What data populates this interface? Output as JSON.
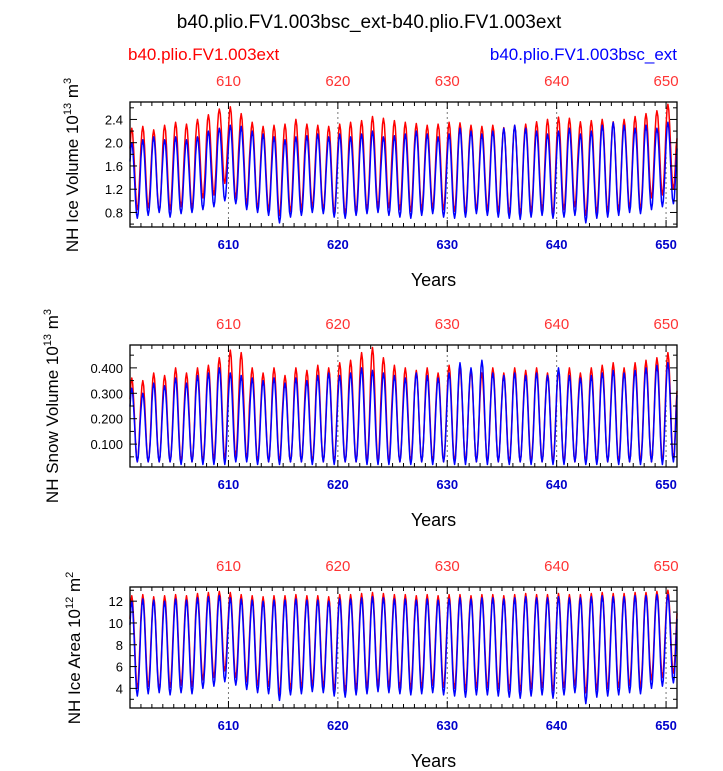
{
  "figure": {
    "title": "b40.plio.FV1.003bsc_ext-b40.plio.FV1.003ext",
    "legend_left": "b40.plio.FV1.003ext",
    "legend_right": "b40.plio.FV1.003bsc_ext",
    "colors": {
      "red_series": "#ff0000",
      "blue_series": "#0000ff",
      "top_ticks": "#ff3333",
      "bottom_ticks": "#0000cc"
    }
  },
  "chart_data": [
    {
      "type": "line",
      "xlabel": "Years",
      "ylabel_base": "NH Ice Volume 10",
      "ylabel_exp": "13",
      "ylabel_unit": " m",
      "ylabel_unit_exp": "3",
      "xlim": [
        601,
        651
      ],
      "ylim": [
        0.55,
        2.7
      ],
      "xticks": [
        610,
        620,
        630,
        640,
        650
      ],
      "yticks": [
        0.8,
        1.2,
        1.6,
        2.0,
        2.4
      ],
      "ytick_labels": [
        "0.8",
        "1.2",
        "1.6",
        "2.0",
        "2.4"
      ],
      "yminor": [
        0.6,
        1.0,
        1.4,
        1.8,
        2.2,
        2.6
      ],
      "grid": "dashed vertical at labeled years",
      "series": [
        {
          "name": "b40.plio.FV1.003ext",
          "color": "#ff0000",
          "years": [
            601,
            602,
            603,
            604,
            605,
            606,
            607,
            608,
            609,
            610,
            611,
            612,
            613,
            614,
            615,
            616,
            617,
            618,
            619,
            620,
            621,
            622,
            623,
            624,
            625,
            626,
            627,
            628,
            629,
            630,
            631,
            632,
            633,
            634,
            635,
            636,
            637,
            638,
            639,
            640,
            641,
            642,
            643,
            644,
            645,
            646,
            647,
            648,
            649,
            650,
            651
          ],
          "annual_max": [
            2.25,
            2.28,
            2.22,
            2.3,
            2.35,
            2.32,
            2.4,
            2.48,
            2.58,
            2.62,
            2.5,
            2.35,
            2.28,
            2.3,
            2.32,
            2.4,
            2.32,
            2.3,
            2.28,
            2.32,
            2.35,
            2.38,
            2.45,
            2.42,
            2.38,
            2.35,
            2.33,
            2.3,
            2.32,
            2.35,
            2.34,
            2.3,
            2.28,
            2.3,
            2.26,
            2.3,
            2.32,
            2.36,
            2.4,
            2.44,
            2.42,
            2.36,
            2.38,
            2.4,
            2.36,
            2.4,
            2.45,
            2.5,
            2.55,
            2.66,
            2.35
          ],
          "annual_min": [
            0.85,
            0.88,
            0.82,
            0.85,
            0.9,
            0.88,
            1.05,
            1.1,
            1.3,
            1.05,
            0.95,
            0.88,
            0.85,
            0.75,
            0.82,
            0.85,
            0.9,
            0.85,
            0.8,
            0.78,
            0.82,
            0.85,
            0.9,
            0.88,
            0.85,
            0.82,
            0.85,
            0.88,
            0.85,
            0.82,
            0.8,
            0.85,
            0.85,
            0.82,
            0.8,
            0.78,
            0.82,
            0.85,
            0.78,
            0.85,
            0.9,
            0.75,
            0.8,
            0.82,
            0.85,
            0.88,
            0.85,
            1.05,
            1.1,
            1.2,
            1.25
          ]
        },
        {
          "name": "b40.plio.FV1.003bsc_ext",
          "color": "#0000ff",
          "years": [
            601,
            602,
            603,
            604,
            605,
            606,
            607,
            608,
            609,
            610,
            611,
            612,
            613,
            614,
            615,
            616,
            617,
            618,
            619,
            620,
            621,
            622,
            623,
            624,
            625,
            626,
            627,
            628,
            629,
            630,
            631,
            632,
            633,
            634,
            635,
            636,
            637,
            638,
            639,
            640,
            641,
            642,
            643,
            644,
            645,
            646,
            647,
            648,
            649,
            650,
            651
          ],
          "annual_max": [
            2.0,
            2.05,
            2.1,
            2.05,
            2.1,
            2.05,
            2.1,
            2.2,
            2.25,
            2.3,
            2.28,
            2.2,
            2.15,
            2.1,
            2.05,
            2.1,
            2.12,
            2.15,
            2.1,
            2.15,
            2.1,
            2.15,
            2.2,
            2.1,
            2.12,
            2.15,
            2.2,
            2.15,
            2.1,
            2.15,
            2.25,
            2.2,
            2.15,
            2.2,
            2.25,
            2.3,
            2.25,
            2.2,
            2.15,
            2.2,
            2.25,
            2.15,
            2.2,
            2.3,
            2.35,
            2.3,
            2.25,
            2.3,
            2.25,
            2.35,
            2.2
          ],
          "annual_min": [
            0.7,
            0.75,
            0.8,
            0.72,
            0.78,
            0.8,
            0.85,
            0.9,
            1.0,
            0.95,
            0.85,
            0.8,
            0.75,
            0.62,
            0.72,
            0.75,
            0.8,
            0.78,
            0.72,
            0.7,
            0.75,
            0.78,
            0.8,
            0.75,
            0.72,
            0.7,
            0.75,
            0.78,
            0.72,
            0.7,
            0.72,
            0.78,
            0.75,
            0.72,
            0.7,
            0.68,
            0.72,
            0.75,
            0.7,
            0.72,
            0.75,
            0.62,
            0.7,
            0.72,
            0.75,
            0.8,
            0.78,
            0.85,
            0.9,
            0.95,
            1.0
          ]
        }
      ]
    },
    {
      "type": "line",
      "xlabel": "Years",
      "ylabel_base": "NH Snow Volume 10",
      "ylabel_exp": "13",
      "ylabel_unit": " m",
      "ylabel_unit_exp": "3",
      "xlim": [
        601,
        651
      ],
      "ylim": [
        0.01,
        0.49
      ],
      "xticks": [
        610,
        620,
        630,
        640,
        650
      ],
      "yticks": [
        0.1,
        0.2,
        0.3,
        0.4
      ],
      "ytick_labels": [
        "0.100",
        "0.200",
        "0.300",
        "0.400"
      ],
      "yminor": [
        0.05,
        0.15,
        0.25,
        0.35,
        0.45
      ],
      "grid": "dashed vertical at labeled years",
      "series": [
        {
          "name": "b40.plio.FV1.003ext",
          "color": "#ff0000",
          "years": [
            601,
            602,
            603,
            604,
            605,
            606,
            607,
            608,
            609,
            610,
            611,
            612,
            613,
            614,
            615,
            616,
            617,
            618,
            619,
            620,
            621,
            622,
            623,
            624,
            625,
            626,
            627,
            628,
            629,
            630,
            631,
            632,
            633,
            634,
            635,
            636,
            637,
            638,
            639,
            640,
            641,
            642,
            643,
            644,
            645,
            646,
            647,
            648,
            649,
            650,
            651
          ],
          "annual_max": [
            0.36,
            0.35,
            0.38,
            0.37,
            0.4,
            0.38,
            0.4,
            0.41,
            0.44,
            0.47,
            0.46,
            0.4,
            0.38,
            0.4,
            0.37,
            0.4,
            0.39,
            0.41,
            0.4,
            0.42,
            0.43,
            0.46,
            0.48,
            0.44,
            0.41,
            0.4,
            0.39,
            0.4,
            0.38,
            0.41,
            0.4,
            0.39,
            0.38,
            0.4,
            0.38,
            0.4,
            0.39,
            0.4,
            0.38,
            0.39,
            0.4,
            0.38,
            0.4,
            0.41,
            0.42,
            0.4,
            0.42,
            0.43,
            0.44,
            0.46,
            0.4
          ],
          "annual_min": [
            0.03,
            0.03,
            0.03,
            0.03,
            0.03,
            0.03,
            0.03,
            0.04,
            0.04,
            0.05,
            0.04,
            0.03,
            0.03,
            0.03,
            0.03,
            0.03,
            0.03,
            0.03,
            0.03,
            0.03,
            0.03,
            0.03,
            0.03,
            0.03,
            0.03,
            0.03,
            0.03,
            0.03,
            0.03,
            0.03,
            0.03,
            0.03,
            0.03,
            0.03,
            0.03,
            0.03,
            0.03,
            0.03,
            0.03,
            0.03,
            0.03,
            0.03,
            0.03,
            0.03,
            0.03,
            0.03,
            0.03,
            0.03,
            0.03,
            0.04,
            0.04
          ]
        },
        {
          "name": "b40.plio.FV1.003bsc_ext",
          "color": "#0000ff",
          "years": [
            601,
            602,
            603,
            604,
            605,
            606,
            607,
            608,
            609,
            610,
            611,
            612,
            613,
            614,
            615,
            616,
            617,
            618,
            619,
            620,
            621,
            622,
            623,
            624,
            625,
            626,
            627,
            628,
            629,
            630,
            631,
            632,
            633,
            634,
            635,
            636,
            637,
            638,
            639,
            640,
            641,
            642,
            643,
            644,
            645,
            646,
            647,
            648,
            649,
            650,
            651
          ],
          "annual_max": [
            0.32,
            0.3,
            0.34,
            0.33,
            0.36,
            0.34,
            0.37,
            0.38,
            0.4,
            0.38,
            0.37,
            0.36,
            0.35,
            0.36,
            0.34,
            0.36,
            0.35,
            0.37,
            0.38,
            0.37,
            0.38,
            0.4,
            0.39,
            0.38,
            0.37,
            0.36,
            0.38,
            0.37,
            0.36,
            0.38,
            0.42,
            0.4,
            0.43,
            0.38,
            0.37,
            0.38,
            0.37,
            0.38,
            0.37,
            0.4,
            0.37,
            0.36,
            0.37,
            0.38,
            0.39,
            0.38,
            0.39,
            0.4,
            0.41,
            0.42,
            0.38
          ],
          "annual_min": [
            0.03,
            0.03,
            0.03,
            0.03,
            0.02,
            0.03,
            0.02,
            0.02,
            0.02,
            0.03,
            0.03,
            0.02,
            0.03,
            0.02,
            0.03,
            0.03,
            0.02,
            0.03,
            0.02,
            0.03,
            0.03,
            0.02,
            0.02,
            0.02,
            0.03,
            0.02,
            0.03,
            0.02,
            0.03,
            0.02,
            0.02,
            0.03,
            0.02,
            0.03,
            0.02,
            0.03,
            0.02,
            0.03,
            0.02,
            0.02,
            0.03,
            0.02,
            0.02,
            0.03,
            0.02,
            0.03,
            0.02,
            0.03,
            0.02,
            0.03,
            0.03
          ]
        }
      ]
    },
    {
      "type": "line",
      "xlabel": "Years",
      "ylabel_base": "NH Ice Area 10",
      "ylabel_exp": "12",
      "ylabel_unit": " m",
      "ylabel_unit_exp": "2",
      "xlim": [
        601,
        651
      ],
      "ylim": [
        2.2,
        13.3
      ],
      "xticks": [
        610,
        620,
        630,
        640,
        650
      ],
      "yticks": [
        4,
        6,
        8,
        10,
        12
      ],
      "ytick_labels": [
        "4",
        "6",
        "8",
        "10",
        "12"
      ],
      "yminor": [
        3,
        5,
        7,
        9,
        11,
        13
      ],
      "grid": "dashed vertical at labeled years",
      "series": [
        {
          "name": "b40.plio.FV1.003ext",
          "color": "#ff0000",
          "years": [
            601,
            602,
            603,
            604,
            605,
            606,
            607,
            608,
            609,
            610,
            611,
            612,
            613,
            614,
            615,
            616,
            617,
            618,
            619,
            620,
            621,
            622,
            623,
            624,
            625,
            626,
            627,
            628,
            629,
            630,
            631,
            632,
            633,
            634,
            635,
            636,
            637,
            638,
            639,
            640,
            641,
            642,
            643,
            644,
            645,
            646,
            647,
            648,
            649,
            650,
            651
          ],
          "annual_max": [
            12.5,
            12.6,
            12.4,
            12.5,
            12.6,
            12.5,
            12.7,
            12.8,
            12.9,
            12.8,
            12.6,
            12.5,
            12.4,
            12.5,
            12.5,
            12.6,
            12.5,
            12.5,
            12.4,
            12.6,
            12.6,
            12.7,
            12.8,
            12.7,
            12.6,
            12.6,
            12.5,
            12.6,
            12.5,
            12.6,
            12.6,
            12.5,
            12.6,
            12.6,
            12.5,
            12.6,
            12.7,
            12.6,
            12.6,
            12.7,
            12.6,
            12.6,
            12.7,
            12.8,
            12.7,
            12.7,
            12.8,
            12.8,
            12.9,
            13.0,
            12.7
          ],
          "annual_min": [
            4.0,
            4.2,
            3.9,
            4.1,
            4.3,
            4.2,
            4.8,
            5.0,
            5.6,
            5.0,
            4.6,
            4.3,
            4.2,
            3.5,
            4.0,
            4.1,
            4.3,
            4.2,
            3.9,
            3.8,
            4.0,
            4.1,
            4.3,
            4.2,
            4.1,
            4.0,
            4.1,
            4.3,
            4.1,
            4.0,
            3.9,
            4.1,
            4.1,
            4.0,
            3.9,
            3.8,
            4.0,
            4.1,
            3.8,
            4.1,
            4.3,
            3.6,
            3.9,
            4.0,
            4.1,
            4.3,
            4.1,
            4.8,
            5.0,
            5.4,
            5.5
          ]
        },
        {
          "name": "b40.plio.FV1.003bsc_ext",
          "color": "#0000ff",
          "years": [
            601,
            602,
            603,
            604,
            605,
            606,
            607,
            608,
            609,
            610,
            611,
            612,
            613,
            614,
            615,
            616,
            617,
            618,
            619,
            620,
            621,
            622,
            623,
            624,
            625,
            626,
            627,
            628,
            629,
            630,
            631,
            632,
            633,
            634,
            635,
            636,
            637,
            638,
            639,
            640,
            641,
            642,
            643,
            644,
            645,
            646,
            647,
            648,
            649,
            650,
            651
          ],
          "annual_max": [
            12.0,
            12.2,
            12.1,
            12.0,
            12.2,
            12.1,
            12.3,
            12.4,
            12.5,
            12.3,
            12.2,
            12.1,
            12.0,
            12.1,
            12.1,
            12.2,
            12.1,
            12.1,
            12.0,
            12.2,
            12.2,
            12.3,
            12.4,
            12.3,
            12.2,
            12.2,
            12.1,
            12.2,
            12.1,
            12.2,
            12.3,
            12.2,
            12.3,
            12.3,
            12.2,
            12.3,
            12.4,
            12.3,
            12.3,
            12.4,
            12.3,
            12.3,
            12.4,
            12.5,
            12.4,
            12.4,
            12.5,
            12.5,
            12.6,
            12.6,
            12.3
          ],
          "annual_min": [
            3.3,
            3.5,
            3.6,
            3.4,
            3.6,
            3.5,
            4.0,
            4.2,
            4.6,
            4.3,
            3.9,
            3.6,
            3.5,
            2.9,
            3.4,
            3.5,
            3.7,
            3.6,
            3.3,
            3.2,
            3.4,
            3.5,
            3.7,
            3.6,
            3.5,
            3.4,
            3.5,
            3.6,
            3.4,
            3.3,
            3.2,
            3.4,
            3.4,
            3.3,
            3.2,
            3.1,
            3.3,
            3.4,
            3.1,
            3.4,
            3.6,
            2.6,
            3.2,
            3.3,
            3.4,
            3.6,
            3.5,
            4.0,
            4.2,
            4.5,
            4.6
          ]
        }
      ]
    }
  ]
}
